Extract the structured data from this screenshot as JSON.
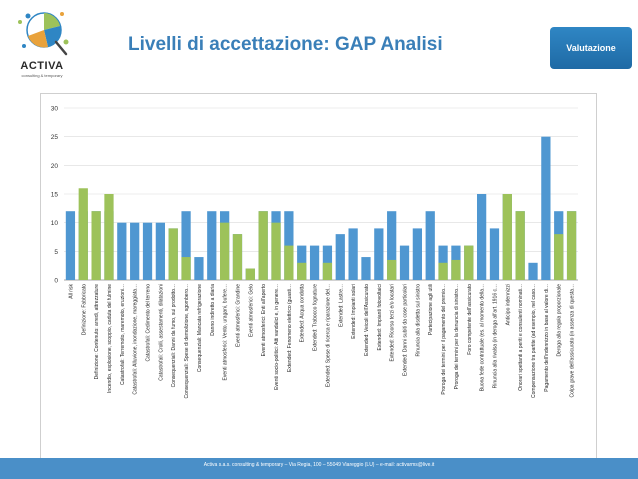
{
  "header": {
    "title": "Livelli di accettazione: GAP Analisi",
    "badge": "Valutazione"
  },
  "logo": {
    "name": "ACTIVA",
    "tagline": "consulting & temporary"
  },
  "footer": {
    "text": "Activa s.a.s. consulting & temporary – Via Regia, 100 – 55049 Viareggio (LU) – e-mail: activarms@live.it"
  },
  "colors": {
    "blue_series": "#4f97d1",
    "green_series": "#9dc25a",
    "title": "#3a7fb8",
    "badge": "#2f86c4",
    "footer": "#4a8fc8"
  },
  "chart_data": {
    "type": "bar",
    "ylim": [
      0,
      30
    ],
    "yticks": [
      0,
      5,
      10,
      15,
      20,
      25,
      30
    ],
    "grid": true,
    "categories": [
      "All risk",
      "Definizione: Fabbricato",
      "Definizione: Contenuto: arredi, attrezzature",
      "Incendio, esplosione, scoppio, caduta del fulmine",
      "Catastrofali: Terremoto, maremoto, eruzioni…",
      "Catastrofali: Alluvione, inondazione, mareggiata…",
      "Catastrofali: Cedimento del terreno",
      "Catastrofali: Crolli, assestamenti, dilatazioni",
      "Consequenziali: Danni da fumo, sui prodotto…",
      "Consequenziali: Spese di demolizione, sgombero…",
      "Consequenziali: Mancata refrigerazione",
      "Danno indiretto a diaria",
      "Eventi atmosferici: Vento, uragani, bufere…",
      "Eventi atmosferici: Grandine",
      "Eventi atmosferici: Gelo",
      "Eventi atmosferici: Enti all'aperto",
      "Eventi socio-politici: Atti vandalici e, in genere…",
      "Extended: Fenomeno elettrico (guasti…",
      "Extended: Acqua condotta",
      "Extended: Trabocco fognature",
      "Extended: Spese di ricerca e riparazione del…",
      "Extended: Lastre…",
      "Extended: Impianti solari",
      "Extended: Veicoli dell'Assicurato",
      "Extended: Impianti fotovoltaici",
      "Extended: Ricorso terzi e/o locatari",
      "Extended: Danni subiti da cose particolari",
      "Rinuncia alla disdetta sul sinistro",
      "Partecipazione agli utili",
      "Proroga dei termini per il pagamento del premio…",
      "Proroga dei termini per la denuncia di sinistro…",
      "Foro competente dell'assicurato",
      "Buona fede contrattuale (es. al momento della…",
      "Rinuncia alla rivalsa (in deroga all'art. 1916 c…",
      "Anticipo indennizzi",
      "Onorari spettanti a periti e consulenti nominati…",
      "Compensazione tra partite (ad esempio, nel caso…",
      "Pagamento dell'indennizzo in base al valore di…",
      "Deroga alla regola proporzionale",
      "Colpa grave dell'assicurato (in assenza di questa…"
    ],
    "series": [
      {
        "values": [
          12,
          12,
          12,
          12,
          10,
          10,
          10,
          10,
          9,
          12,
          4,
          12,
          12,
          8,
          2,
          12,
          12,
          12,
          6,
          6,
          6,
          8,
          9,
          4,
          9,
          12,
          6,
          9,
          12,
          6,
          6,
          6,
          15,
          9,
          15,
          12,
          3,
          25,
          12,
          12
        ]
      },
      {
        "values": [
          0,
          16,
          12,
          15,
          0,
          0,
          0,
          0,
          9,
          4,
          0,
          0,
          10,
          8,
          2,
          12,
          10,
          6,
          3,
          0,
          3,
          0,
          0,
          0,
          0,
          3.5,
          0,
          0,
          0,
          3,
          3.5,
          6,
          0,
          0,
          15,
          12,
          0,
          0,
          8,
          12
        ]
      }
    ]
  }
}
